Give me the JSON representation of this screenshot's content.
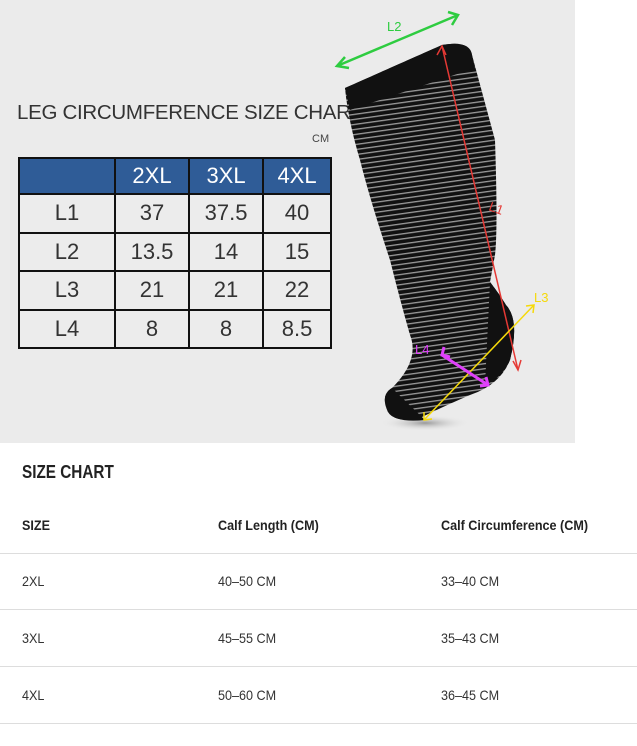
{
  "leg_chart": {
    "title": "LEG CIRCUMFERENCE SIZE CHART",
    "unit": "CM",
    "headers": [
      "",
      "2XL",
      "3XL",
      "4XL"
    ],
    "rows": [
      [
        "L1",
        "37",
        "37.5",
        "40"
      ],
      [
        "L2",
        "13.5",
        "14",
        "15"
      ],
      [
        "L3",
        "21",
        "21",
        "22"
      ],
      [
        "L4",
        "8",
        "8",
        "8.5"
      ]
    ],
    "header_color": "#2f5c97"
  },
  "diagram": {
    "labels": {
      "l1": "L1",
      "l2": "L2",
      "l3": "L3",
      "l4": "L4"
    },
    "colors": {
      "l1": "#e53935",
      "l2": "#2ecc40",
      "l3": "#f5d90a",
      "l4": "#e040fb"
    }
  },
  "size_chart": {
    "title": "SIZE CHART",
    "headers": [
      "SIZE",
      "Calf Length (CM)",
      "Calf Circumference (CM)"
    ],
    "rows": [
      [
        "2XL",
        "40–50 CM",
        "33–40 CM"
      ],
      [
        "3XL",
        "45–55 CM",
        "35–43 CM"
      ],
      [
        "4XL",
        "50–60 CM",
        "36–45 CM"
      ]
    ]
  }
}
